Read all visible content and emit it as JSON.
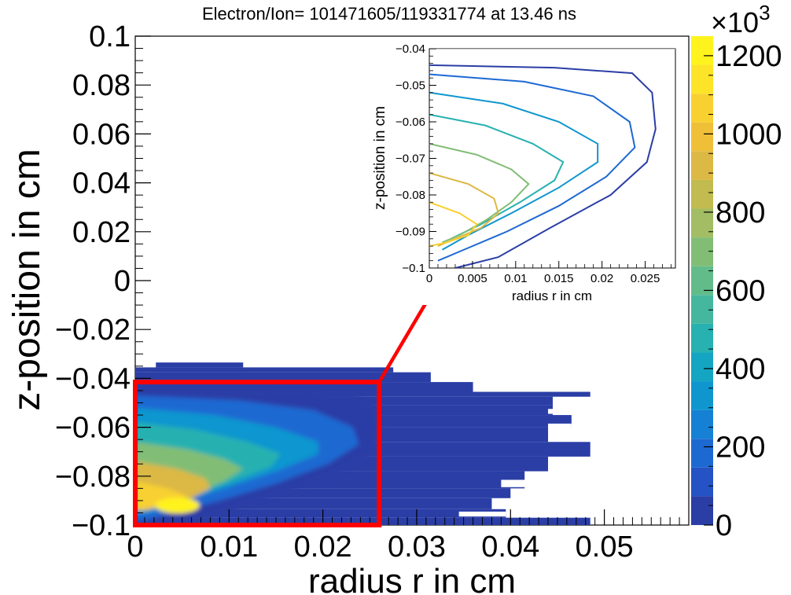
{
  "chart_data": [
    {
      "type": "heatmap",
      "title": "Electron/Ion= 101471605/119331774 at 13.46 ns",
      "xlabel": "radius r in cm",
      "ylabel": "z-position in cm",
      "xlim": [
        0,
        0.059
      ],
      "ylim": [
        -0.1,
        0.1
      ],
      "x_ticks": [
        "0",
        "0.01",
        "0.02",
        "0.03",
        "0.04",
        "0.05"
      ],
      "y_ticks": [
        "−0.1",
        "−0.08",
        "−0.06",
        "−0.04",
        "−0.02",
        "0",
        "0.02",
        "0.04",
        "0.06",
        "0.08",
        "0.1"
      ],
      "colorbar": {
        "range": [
          0,
          1250
        ],
        "multiplier_base": "×10",
        "multiplier_exp": "3",
        "ticks": [
          "0",
          "200",
          "400",
          "600",
          "800",
          "1000",
          "1200"
        ],
        "colors": [
          "#2b3ea6",
          "#2552c4",
          "#1d69d2",
          "#1680d4",
          "#0f96cf",
          "#14a5c2",
          "#27b1b0",
          "#44b79e",
          "#62bc8a",
          "#82bd76",
          "#a2bd63",
          "#c1bb50",
          "#dcb844",
          "#efbf38",
          "#f8d030",
          "#fde428",
          "#fff31d"
        ]
      },
      "hotspot": {
        "r": 0.0045,
        "z": -0.092,
        "peak": 1250
      },
      "highlight_box": {
        "r": [
          0,
          0.026
        ],
        "z": [
          -0.1,
          -0.0415
        ]
      },
      "background_region": {
        "ranges": [
          {
            "z": [
              -0.0355,
              -0.0335
            ],
            "r": [
              0.0022,
              0.0115
            ]
          },
          {
            "z": [
              -0.0375,
              -0.0355
            ],
            "r": [
              0.0,
              0.0275
            ]
          },
          {
            "z": [
              -0.0415,
              -0.0375
            ],
            "r": [
              0.0,
              0.0315
            ]
          },
          {
            "z": [
              -0.0455,
              -0.0415
            ],
            "r": [
              0.0,
              0.036
            ]
          },
          {
            "z": [
              -0.0475,
              -0.0455
            ],
            "r": [
              0.0,
              0.0485
            ]
          },
          {
            "z": [
              -0.051,
              -0.0475
            ],
            "r": [
              0.0,
              0.0445
            ]
          },
          {
            "z": [
              -0.055,
              -0.051
            ],
            "r": [
              0.0,
              0.0445
            ]
          },
          {
            "z": [
              -0.06,
              -0.055
            ],
            "r": [
              0.0,
              0.0465
            ]
          },
          {
            "z": [
              -0.066,
              -0.06
            ],
            "r": [
              0.0,
              0.044
            ]
          },
          {
            "z": [
              -0.072,
              -0.066
            ],
            "r": [
              0.0,
              0.0485
            ]
          },
          {
            "z": [
              -0.078,
              -0.072
            ],
            "r": [
              0.0,
              0.044
            ]
          },
          {
            "z": [
              -0.085,
              -0.078
            ],
            "r": [
              0.0,
              0.0415
            ]
          },
          {
            "z": [
              -0.089,
              -0.085
            ],
            "r": [
              0.0,
              0.04
            ]
          },
          {
            "z": [
              -0.0935,
              -0.089
            ],
            "r": [
              0.0,
              0.038
            ]
          },
          {
            "z": [
              -0.097,
              -0.0935
            ],
            "r": [
              0.0,
              0.0395
            ]
          },
          {
            "z": [
              -0.1,
              -0.097
            ],
            "r": [
              0.0,
              0.0485
            ]
          }
        ],
        "gaps": [
          {
            "z": [
              -0.0545,
              -0.0525
            ],
            "r": [
              0.044,
              0.0465
            ]
          },
          {
            "z": [
              -0.0605,
              -0.0585
            ],
            "r": [
              0.044,
              0.0465
            ]
          },
          {
            "z": [
              -0.0845,
              -0.0815
            ],
            "r": [
              0.039,
              0.0445
            ]
          },
          {
            "z": [
              -0.0965,
              -0.0945
            ],
            "r": [
              0.0345,
              0.0395
            ]
          }
        ]
      },
      "contours": [
        {
          "level": 60,
          "points": [
            [
              0,
              -0.0445
            ],
            [
              0.0145,
              -0.0452
            ],
            [
              0.0235,
              -0.0467
            ],
            [
              0.0258,
              -0.052
            ],
            [
              0.0262,
              -0.062
            ],
            [
              0.0252,
              -0.071
            ],
            [
              0.021,
              -0.08
            ],
            [
              0.014,
              -0.089
            ],
            [
              0.008,
              -0.097
            ],
            [
              0.003,
              -0.1
            ]
          ]
        },
        {
          "level": 200,
          "points": [
            [
              0,
              -0.047
            ],
            [
              0.011,
              -0.049
            ],
            [
              0.019,
              -0.053
            ],
            [
              0.0232,
              -0.06
            ],
            [
              0.0238,
              -0.067
            ],
            [
              0.0205,
              -0.075
            ],
            [
              0.015,
              -0.083
            ],
            [
              0.009,
              -0.09
            ],
            [
              0.004,
              -0.095
            ],
            [
              0.001,
              -0.098
            ]
          ]
        },
        {
          "level": 350,
          "points": [
            [
              0,
              -0.052
            ],
            [
              0.0085,
              -0.055
            ],
            [
              0.015,
              -0.06
            ],
            [
              0.0195,
              -0.066
            ],
            [
              0.0195,
              -0.071
            ],
            [
              0.015,
              -0.078
            ],
            [
              0.0095,
              -0.085
            ],
            [
              0.0045,
              -0.091
            ],
            [
              0.0015,
              -0.095
            ]
          ]
        },
        {
          "level": 500,
          "points": [
            [
              0,
              -0.058
            ],
            [
              0.0065,
              -0.061
            ],
            [
              0.012,
              -0.066
            ],
            [
              0.0155,
              -0.071
            ],
            [
              0.0145,
              -0.076
            ],
            [
              0.0105,
              -0.082
            ],
            [
              0.006,
              -0.088
            ],
            [
              0.0025,
              -0.092
            ]
          ]
        },
        {
          "level": 700,
          "points": [
            [
              0,
              -0.066
            ],
            [
              0.0055,
              -0.069
            ],
            [
              0.0095,
              -0.073
            ],
            [
              0.0115,
              -0.077
            ],
            [
              0.0095,
              -0.082
            ],
            [
              0.0065,
              -0.087
            ],
            [
              0.0035,
              -0.091
            ],
            [
              0.0015,
              -0.093
            ]
          ]
        },
        {
          "level": 900,
          "points": [
            [
              0,
              -0.074
            ],
            [
              0.0045,
              -0.077
            ],
            [
              0.0075,
              -0.081
            ],
            [
              0.008,
              -0.085
            ],
            [
              0.006,
              -0.089
            ],
            [
              0.003,
              -0.092
            ],
            [
              0.001,
              -0.094
            ]
          ]
        },
        {
          "level": 1100,
          "points": [
            [
              0,
              -0.082
            ],
            [
              0.0035,
              -0.085
            ],
            [
              0.0055,
              -0.088
            ],
            [
              0.0045,
              -0.091
            ],
            [
              0.002,
              -0.093
            ],
            [
              0,
              -0.094
            ]
          ]
        }
      ]
    },
    {
      "type": "contour",
      "title": "",
      "xlabel": "radius r in cm",
      "ylabel": "z-position in cm",
      "xlim": [
        0,
        0.0285
      ],
      "ylim": [
        -0.1,
        -0.04
      ],
      "x_ticks": [
        "0",
        "0.005",
        "0.01",
        "0.015",
        "0.02",
        "0.025"
      ],
      "y_ticks": [
        "−0.1",
        "−0.09",
        "−0.08",
        "−0.07",
        "−0.06",
        "−0.05",
        "−0.04"
      ]
    }
  ]
}
